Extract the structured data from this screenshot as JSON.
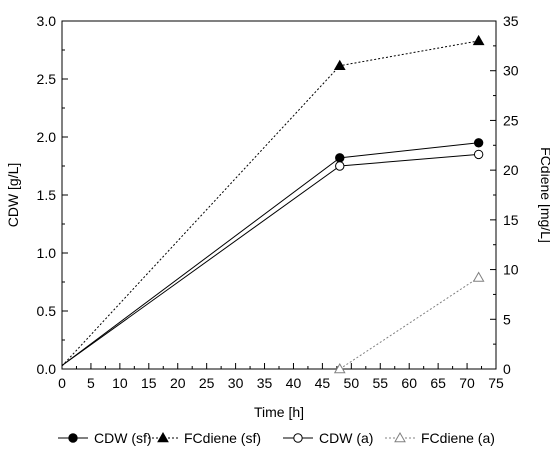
{
  "chart_data": {
    "type": "line",
    "x": [
      0,
      48,
      72
    ],
    "xlabel": "Time [h]",
    "ylabel_left": "CDW [g/L]",
    "ylabel_right": "FCdiene [mg/L]",
    "xlim": [
      0,
      75
    ],
    "ylim_left": [
      0,
      3.0
    ],
    "ylim_right": [
      0,
      35
    ],
    "xticks": [
      "0",
      "5",
      "10",
      "15",
      "20",
      "25",
      "30",
      "35",
      "40",
      "45",
      "50",
      "55",
      "60",
      "65",
      "70",
      "75"
    ],
    "yticks_left": [
      "0.0",
      "0.5",
      "1.0",
      "1.5",
      "2.0",
      "2.5",
      "3.0"
    ],
    "yticks_right": [
      "0",
      "5",
      "10",
      "15",
      "20",
      "25",
      "30",
      "35"
    ],
    "grid": false,
    "legend_position": "bottom",
    "series": [
      {
        "name": "CDW (sf)",
        "axis": "left",
        "marker": "filled-circle",
        "line": "solid",
        "color": "#000000",
        "points": [
          [
            0,
            0.03
          ],
          [
            48,
            1.82
          ],
          [
            72,
            1.95
          ]
        ]
      },
      {
        "name": "FCdiene (sf)",
        "axis": "right",
        "marker": "filled-triangle",
        "line": "dotted",
        "color": "#000000",
        "points": [
          [
            0,
            0.3
          ],
          [
            48,
            30.5
          ],
          [
            72,
            33.0
          ]
        ]
      },
      {
        "name": "CDW (a)",
        "axis": "left",
        "marker": "open-circle",
        "line": "solid",
        "color": "#000000",
        "points": [
          [
            0,
            0.03
          ],
          [
            48,
            1.75
          ],
          [
            72,
            1.85
          ]
        ]
      },
      {
        "name": "FCdiene (a)",
        "axis": "right",
        "marker": "open-triangle",
        "line": "dotted",
        "color": "#808080",
        "points": [
          [
            48,
            0.0
          ],
          [
            72,
            9.2
          ]
        ]
      }
    ]
  }
}
